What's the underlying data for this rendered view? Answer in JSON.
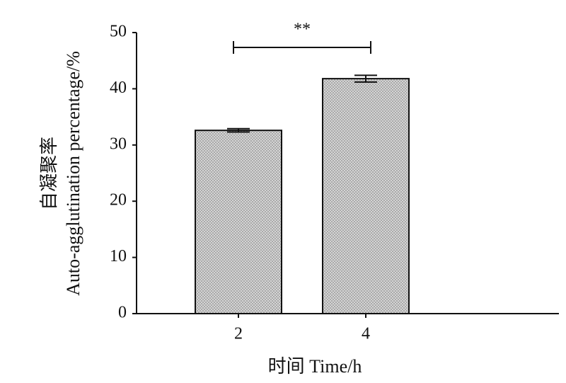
{
  "chart_data": {
    "type": "bar",
    "ylabel": [
      "自凝聚率",
      "Auto-agglutination percentage/%"
    ],
    "xlabel": "时间  Time/h",
    "categories": [
      "2",
      "4"
    ],
    "values": [
      32.6,
      41.8
    ],
    "errors": [
      0.3,
      0.6
    ],
    "color": "#d4d4d4",
    "ylim": [
      0,
      50
    ],
    "yticks": [
      0,
      10,
      20,
      30,
      40,
      50
    ],
    "annotation": "**"
  }
}
